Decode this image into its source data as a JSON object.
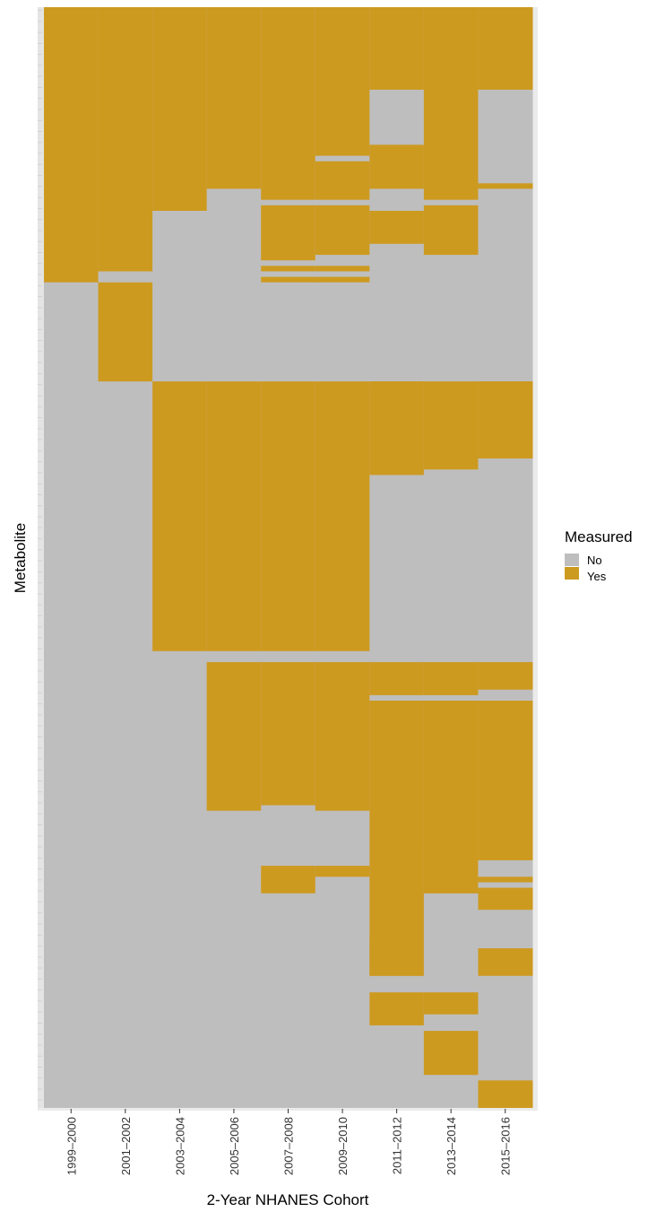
{
  "chart_data": {
    "type": "heatmap",
    "xlabel": "2-Year NHANES Cohort",
    "ylabel": "Metabolite",
    "categories": [
      "1999–2000",
      "2001–2002",
      "2003–2004",
      "2005–2006",
      "2007–2008",
      "2009–2010",
      "2011–2012",
      "2013–2014",
      "2015–2016"
    ],
    "row_count": 200,
    "value_levels": [
      "No",
      "Yes"
    ],
    "legend": {
      "title": "Measured",
      "position": "right",
      "entries": [
        "No",
        "Yes"
      ]
    },
    "colors": {
      "No": "#bebebe",
      "Yes": "#cd9a20"
    },
    "measured_yes_rows": [
      [
        [
          1,
          50
        ]
      ],
      [
        [
          1,
          48
        ],
        [
          51,
          68
        ]
      ],
      [
        [
          1,
          37
        ],
        [
          69,
          117
        ]
      ],
      [
        [
          1,
          33
        ],
        [
          69,
          117
        ],
        [
          120,
          146
        ]
      ],
      [
        [
          1,
          35
        ],
        [
          37,
          46
        ],
        [
          48,
          48
        ],
        [
          50,
          50
        ],
        [
          69,
          117
        ],
        [
          120,
          145
        ],
        [
          157,
          161
        ]
      ],
      [
        [
          1,
          27
        ],
        [
          29,
          35
        ],
        [
          37,
          45
        ],
        [
          48,
          48
        ],
        [
          50,
          50
        ],
        [
          69,
          117
        ],
        [
          120,
          146
        ],
        [
          157,
          158
        ]
      ],
      [
        [
          1,
          15
        ],
        [
          26,
          33
        ],
        [
          38,
          43
        ],
        [
          69,
          64
        ],
        [
          69,
          69
        ],
        [
          69,
          85
        ],
        [
          70,
          69
        ],
        [
          120,
          125
        ],
        [
          127,
          176
        ],
        [
          170,
          176
        ],
        [
          180,
          185
        ]
      ],
      [
        [
          1,
          35
        ],
        [
          37,
          45
        ],
        [
          69,
          84
        ],
        [
          120,
          125
        ],
        [
          127,
          161
        ],
        [
          153,
          161
        ],
        [
          180,
          183
        ],
        [
          187,
          194
        ]
      ],
      [
        [
          1,
          15
        ],
        [
          33,
          33
        ],
        [
          69,
          64
        ],
        [
          69,
          69
        ],
        [
          69,
          82
        ],
        [
          120,
          124
        ],
        [
          127,
          155
        ],
        [
          159,
          159
        ],
        [
          161,
          164
        ],
        [
          172,
          176
        ],
        [
          196,
          200
        ]
      ]
    ]
  }
}
